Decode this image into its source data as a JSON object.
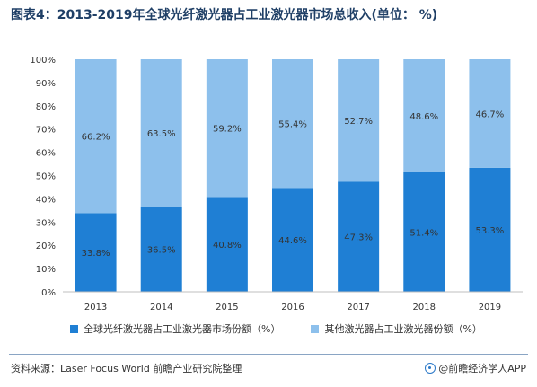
{
  "header": {
    "title": "图表4：2013-2019年全球光纤激光器占工业激光器市场总收入(单位： %)"
  },
  "colors": {
    "series_dark": "#1f7fd4",
    "series_light": "#8dc0ec",
    "text": "#333333"
  },
  "chart_data": {
    "type": "bar",
    "stacked": true,
    "percent_stacked": true,
    "categories": [
      "2013",
      "2014",
      "2015",
      "2016",
      "2017",
      "2018",
      "2019"
    ],
    "series": [
      {
        "name": "全球光纤激光器占工业激光器市场份额（%）",
        "values": [
          33.8,
          36.5,
          40.8,
          44.6,
          47.3,
          51.4,
          53.3
        ]
      },
      {
        "name": "其他激光器占工业激光器份额（%）",
        "values": [
          66.2,
          63.5,
          59.2,
          55.4,
          52.7,
          48.6,
          46.7
        ]
      }
    ],
    "ylim": [
      0,
      100
    ],
    "y_ticks": [
      "0%",
      "10%",
      "20%",
      "30%",
      "40%",
      "50%",
      "60%",
      "70%",
      "80%",
      "90%",
      "100%"
    ],
    "grid": false,
    "legend_position": "bottom",
    "data_labels": true
  },
  "legend": {
    "items": [
      {
        "label": "全球光纤激光器占工业激光器市场份额（%）"
      },
      {
        "label": "其他激光器占工业激光器份额（%）"
      }
    ]
  },
  "footer": {
    "source": "资料来源：Laser Focus World 前瞻产业研究院整理",
    "credit": "@前瞻经济学人APP",
    "credit_icon": "qianzhan-logo-icon"
  }
}
